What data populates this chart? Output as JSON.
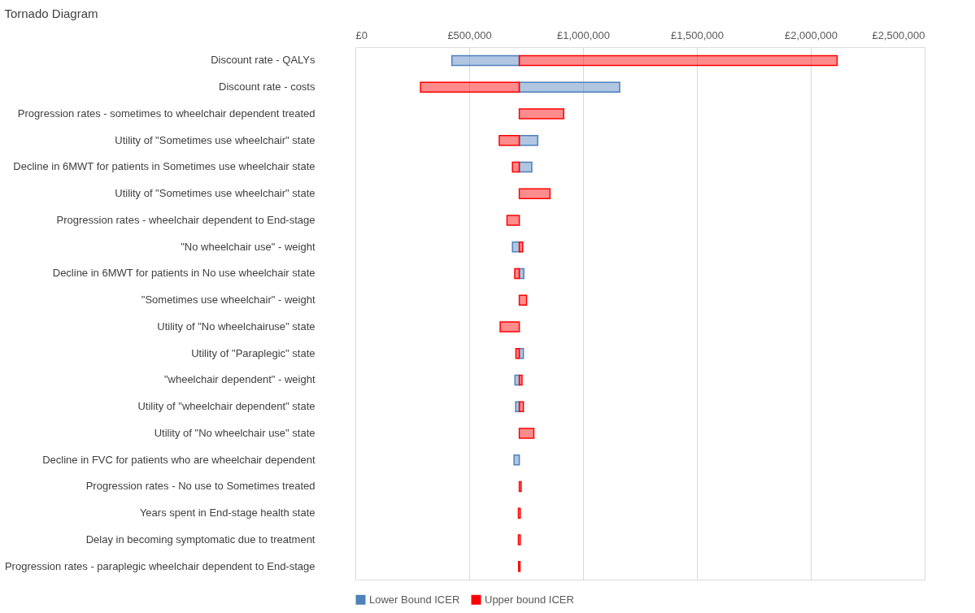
{
  "chart_data": {
    "type": "bar",
    "orientation": "horizontal",
    "title": "Tornado Diagram",
    "categories": [
      "Discount rate - QALYs",
      "Discount rate - costs",
      "Progression rates - sometimes to wheelchair dependent treated",
      "Utility of \"Sometimes use wheelchair\" state",
      "Decline in 6MWT for patients in Sometimes use wheelchair state",
      "Utility of \"Sometimes use wheelchair\" state",
      "Progression rates - wheelchair dependent to End-stage",
      "\"No wheelchair use\" - weight",
      "Decline in 6MWT for patients in No use wheelchair state",
      "\"Sometimes use wheelchair\" - weight",
      "Utility of \"No wheelchairuse\" state",
      "Utility of \"Paraplegic\" state",
      "\"wheelchair dependent\" - weight",
      "Utility of \"wheelchair dependent\" state",
      "Utility of \"No wheelchair use\" state",
      "Decline in FVC for patients who are wheelchair dependent",
      "Progression rates - No use to Sometimes treated",
      "Years spent in End-stage health state",
      "Delay in becoming symptomatic due to treatment",
      "Progression rates - paraplegic wheelchair dependent to End-stage"
    ],
    "series": [
      {
        "name": "Lower Bound ICER",
        "color": "#4f81bd",
        "base": [
          720000,
          720000,
          null,
          720000,
          720000,
          null,
          null,
          720000,
          720000,
          null,
          null,
          720000,
          720000,
          720000,
          null,
          720000,
          null,
          null,
          null,
          null
        ],
        "values": [
          -296000,
          441000,
          null,
          81000,
          55000,
          null,
          null,
          -30000,
          20000,
          null,
          null,
          18000,
          -19000,
          -16000,
          null,
          -23000,
          null,
          null,
          null,
          null
        ]
      },
      {
        "name": "Upper bound ICER",
        "color": "#ff0000",
        "base": [
          720000,
          720000,
          720000,
          720000,
          720000,
          720000,
          720000,
          720000,
          720000,
          720000,
          720000,
          720000,
          720000,
          720000,
          720000,
          null,
          720000,
          716000,
          716000,
          717000
        ],
        "values": [
          1396000,
          -434000,
          195000,
          -88000,
          -30000,
          135000,
          -54000,
          15000,
          -20000,
          32000,
          -84000,
          -15000,
          12000,
          18000,
          64000,
          null,
          8000,
          8000,
          8000,
          6000
        ]
      }
    ],
    "xlim": [
      0,
      2500000
    ],
    "xticks": [
      {
        "value": 0,
        "label": "£0"
      },
      {
        "value": 500000,
        "label": "£500,000"
      },
      {
        "value": 1000000,
        "label": "£1,000,000"
      },
      {
        "value": 1500000,
        "label": "£1,500,000"
      },
      {
        "value": 2000000,
        "label": "£2,000,000"
      },
      {
        "value": 2500000,
        "label": "£2,500,000"
      }
    ],
    "grid": "x",
    "legend": "bottom"
  }
}
